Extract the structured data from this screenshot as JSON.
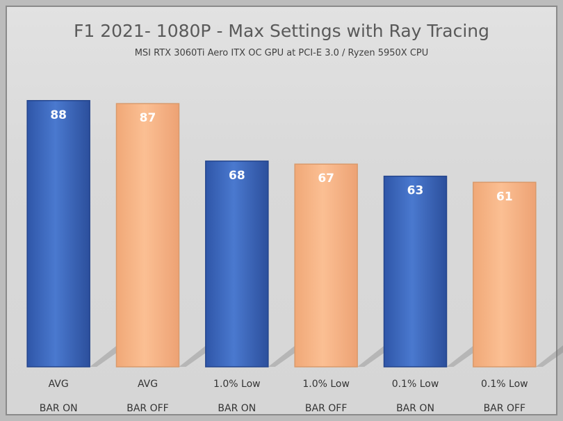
{
  "chart_data": {
    "type": "bar",
    "title": "F1 2021- 1080P - Max Settings with Ray Tracing",
    "subtitle": "MSI RTX 3060Ti Aero ITX OC GPU at PCI-E 3.0 / Ryzen 5950X CPU",
    "categories": [
      [
        "AVG",
        "BAR ON"
      ],
      [
        "AVG",
        "BAR OFF"
      ],
      [
        "1.0% Low",
        "BAR ON"
      ],
      [
        "1.0% Low",
        "BAR OFF"
      ],
      [
        "0.1% Low",
        "BAR ON"
      ],
      [
        "0.1% Low",
        "BAR OFF"
      ]
    ],
    "values": [
      88,
      87,
      68,
      67,
      63,
      61
    ],
    "series_colors": [
      "#4472C4",
      "#F4B183",
      "#4472C4",
      "#F4B183",
      "#4472C4",
      "#F4B183"
    ],
    "ylim": [
      0,
      93
    ],
    "xlabel": "",
    "ylabel": "",
    "grid": false,
    "legend": "none"
  }
}
